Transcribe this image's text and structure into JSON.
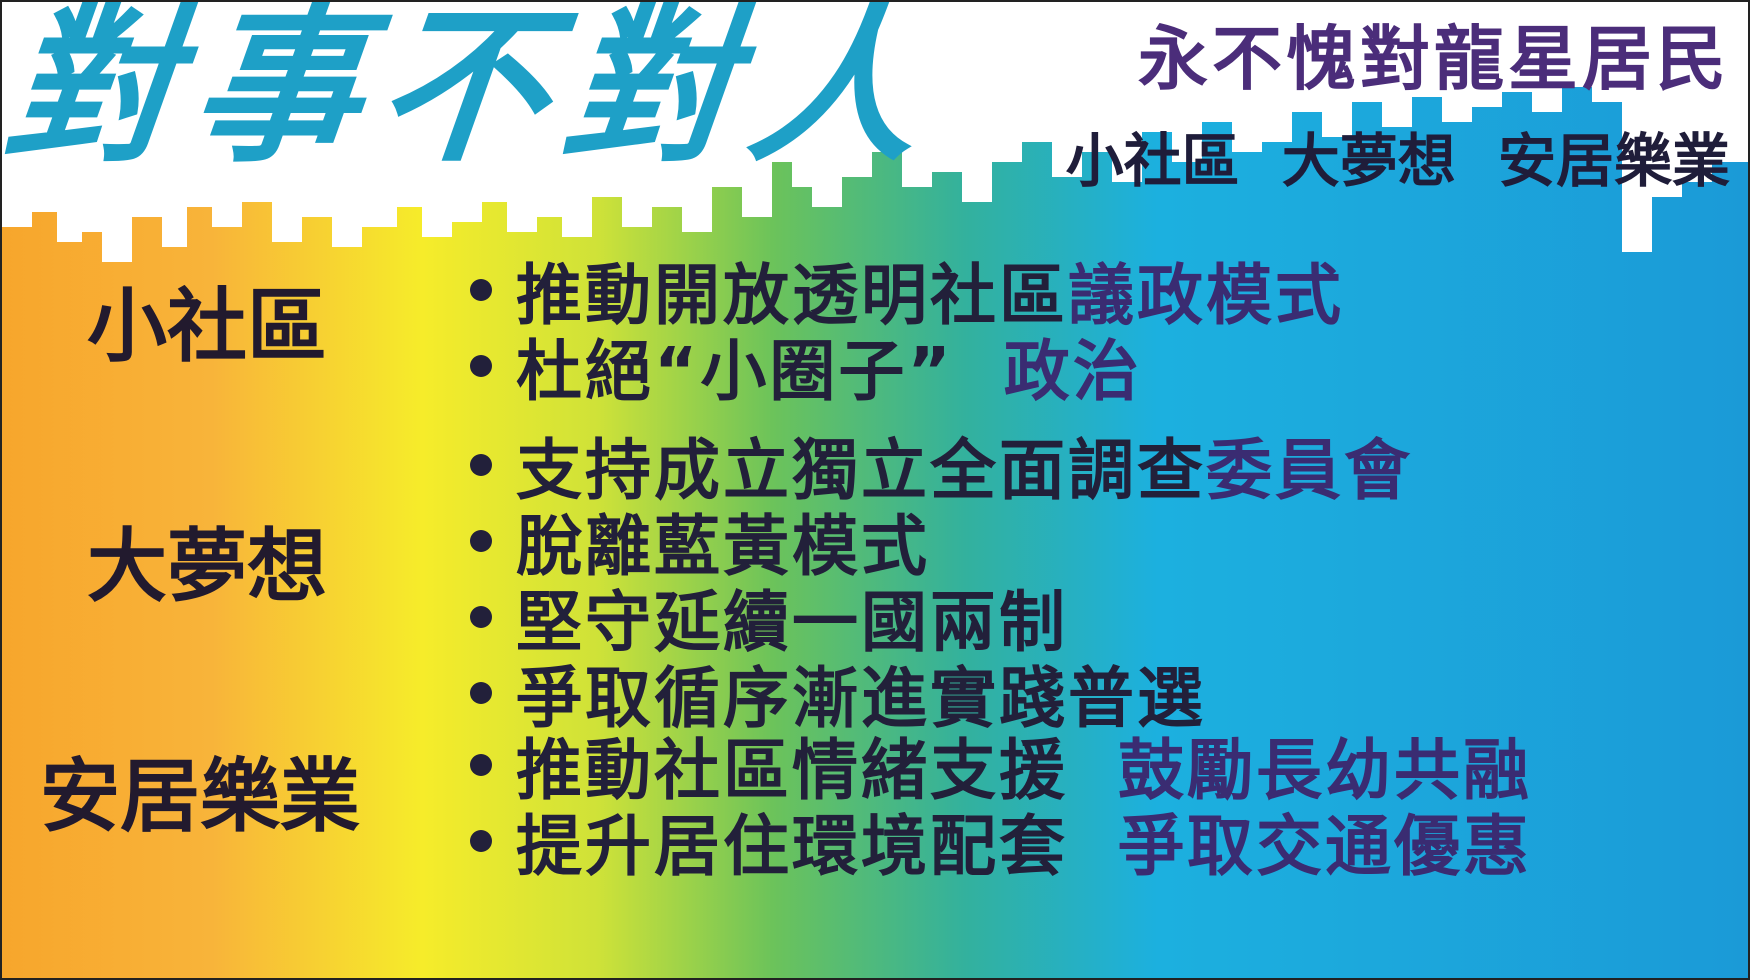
{
  "poster": {
    "title": "對事不對人",
    "subtitle_1": "永不愧對龍星居民",
    "subtitle_2": "小社區 大夢想 安居樂業"
  },
  "sections": [
    {
      "label": "小社區",
      "bullets": [
        {
          "main": "推動開放透明社區",
          "tail": "議政模式"
        },
        {
          "main": "杜絕“小圈子”",
          "tail": "政治"
        }
      ]
    },
    {
      "label": "大夢想",
      "bullets": [
        {
          "main": "支持成立獨立全面調查",
          "tail": "委員會"
        },
        {
          "main": "脫離藍黃模式",
          "tail": ""
        },
        {
          "main": "堅守延續一國兩制",
          "tail": ""
        },
        {
          "main": "爭取循序漸進實踐普選",
          "tail": ""
        }
      ]
    },
    {
      "label": "安居樂業",
      "bullets": [
        {
          "main": "推動社區情緒支援",
          "tail": "鼓勵長幼共融"
        },
        {
          "main": "提升居住環境配套",
          "tail": "爭取交通優惠"
        }
      ]
    }
  ],
  "colors": {
    "title_cyan": "#1ea0c7",
    "subtitle_purple": "#4b2d7a",
    "text_dark": "#22203a",
    "gradient_orange": "#f7a62c",
    "gradient_yellow": "#f6ec2a",
    "gradient_green": "#5fbf5a",
    "gradient_cyan": "#1cb0df",
    "gradient_blue": "#1b9ad7"
  }
}
